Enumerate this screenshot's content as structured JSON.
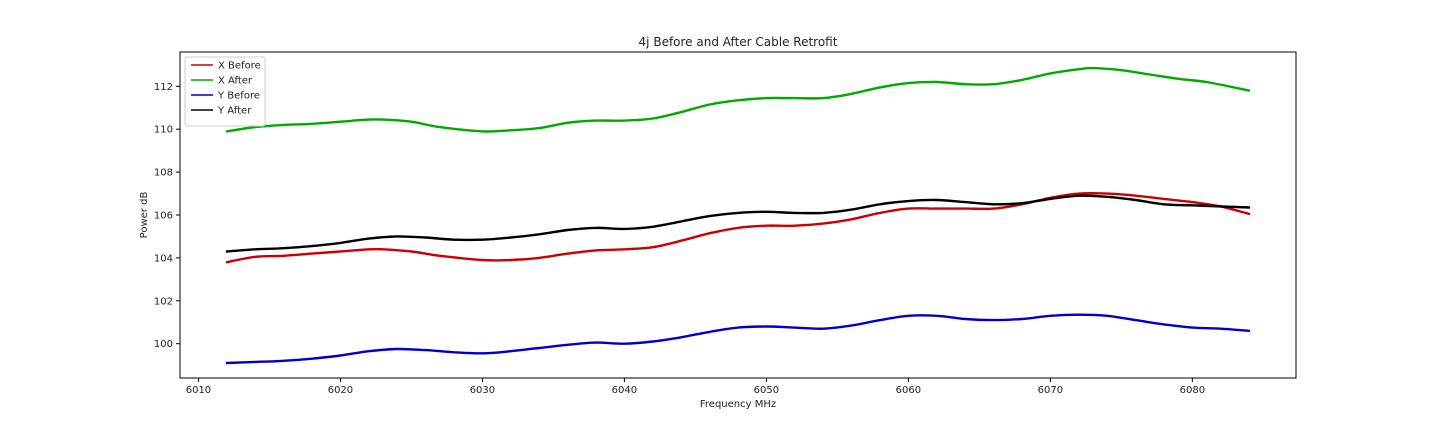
{
  "chart_data": {
    "type": "line",
    "title": "4j Before and After Cable Retrofit",
    "xlabel": "Frequency MHz",
    "ylabel": "Power dB",
    "xlim": [
      6008.7,
      6087.3
    ],
    "ylim": [
      98.4,
      113.6
    ],
    "xticks": [
      6010,
      6020,
      6030,
      6040,
      6050,
      6060,
      6070,
      6080
    ],
    "yticks": [
      100,
      102,
      104,
      106,
      108,
      110,
      112
    ],
    "grid": false,
    "legend": {
      "placement": "top-left"
    },
    "series": [
      {
        "name": "X Before",
        "color": "#cc0000",
        "x": [
          6012,
          6014,
          6016,
          6018,
          6020,
          6022,
          6023,
          6025,
          6027,
          6030,
          6032,
          6034,
          6036,
          6038,
          6040,
          6042,
          6044,
          6046,
          6048,
          6050,
          6052,
          6054,
          6056,
          6058,
          6060,
          6062,
          6064,
          6066,
          6068,
          6070,
          6072,
          6074,
          6076,
          6078,
          6080,
          6082,
          6084
        ],
        "y": [
          103.8,
          104.05,
          104.1,
          104.2,
          104.3,
          104.4,
          104.4,
          104.3,
          104.1,
          103.9,
          103.9,
          104.0,
          104.2,
          104.35,
          104.4,
          104.5,
          104.8,
          105.15,
          105.4,
          105.5,
          105.5,
          105.6,
          105.8,
          106.1,
          106.3,
          106.3,
          106.3,
          106.3,
          106.5,
          106.8,
          107.0,
          107.0,
          106.9,
          106.75,
          106.6,
          106.4,
          106.05
        ]
      },
      {
        "name": "X After",
        "color": "#00aa00",
        "x": [
          6012,
          6014,
          6016,
          6018,
          6020,
          6022,
          6023,
          6025,
          6027,
          6030,
          6032,
          6034,
          6036,
          6038,
          6040,
          6042,
          6044,
          6046,
          6048,
          6050,
          6052,
          6054,
          6056,
          6058,
          6060,
          6062,
          6064,
          6066,
          6068,
          6070,
          6072,
          6073,
          6075,
          6077,
          6079,
          6081,
          6084
        ],
        "y": [
          109.9,
          110.1,
          110.2,
          110.25,
          110.35,
          110.45,
          110.45,
          110.35,
          110.1,
          109.9,
          109.95,
          110.05,
          110.3,
          110.4,
          110.4,
          110.5,
          110.8,
          111.15,
          111.35,
          111.45,
          111.45,
          111.45,
          111.65,
          111.95,
          112.15,
          112.2,
          112.1,
          112.1,
          112.3,
          112.6,
          112.8,
          112.85,
          112.75,
          112.55,
          112.35,
          112.2,
          111.8
        ]
      },
      {
        "name": "Y Before",
        "color": "#0000cc",
        "x": [
          6012,
          6014,
          6016,
          6018,
          6020,
          6022,
          6024,
          6026,
          6028,
          6030,
          6032,
          6034,
          6036,
          6038,
          6040,
          6042,
          6044,
          6046,
          6048,
          6050,
          6052,
          6054,
          6056,
          6058,
          6060,
          6062,
          6064,
          6066,
          6068,
          6070,
          6072,
          6074,
          6076,
          6078,
          6080,
          6082,
          6084
        ],
        "y": [
          99.1,
          99.15,
          99.2,
          99.3,
          99.45,
          99.65,
          99.75,
          99.7,
          99.6,
          99.55,
          99.65,
          99.8,
          99.95,
          100.05,
          100.0,
          100.1,
          100.3,
          100.55,
          100.75,
          100.8,
          100.75,
          100.7,
          100.85,
          101.1,
          101.3,
          101.3,
          101.15,
          101.1,
          101.15,
          101.3,
          101.35,
          101.3,
          101.1,
          100.9,
          100.75,
          100.7,
          100.6
        ]
      },
      {
        "name": "Y After",
        "color": "#000000",
        "x": [
          6012,
          6014,
          6016,
          6018,
          6020,
          6022,
          6024,
          6026,
          6028,
          6030,
          6032,
          6034,
          6036,
          6038,
          6040,
          6042,
          6044,
          6046,
          6048,
          6050,
          6052,
          6054,
          6056,
          6058,
          6060,
          6062,
          6064,
          6066,
          6068,
          6070,
          6072,
          6074,
          6076,
          6078,
          6080,
          6082,
          6084
        ],
        "y": [
          104.3,
          104.4,
          104.45,
          104.55,
          104.7,
          104.9,
          105.0,
          104.95,
          104.85,
          104.85,
          104.95,
          105.1,
          105.3,
          105.4,
          105.35,
          105.45,
          105.7,
          105.95,
          106.1,
          106.15,
          106.1,
          106.1,
          106.25,
          106.5,
          106.65,
          106.7,
          106.6,
          106.5,
          106.55,
          106.75,
          106.9,
          106.85,
          106.7,
          106.5,
          106.45,
          106.4,
          106.35
        ]
      }
    ]
  }
}
